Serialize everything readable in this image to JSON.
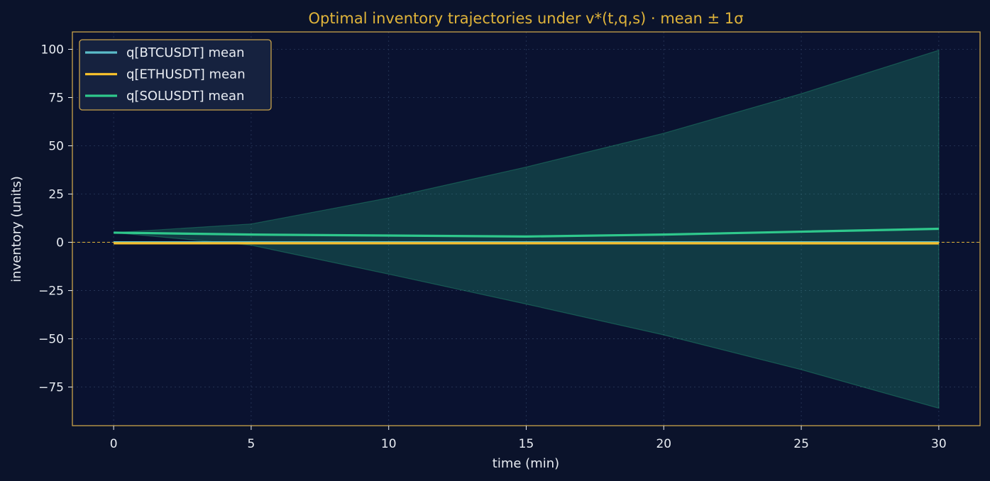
{
  "chart_data": {
    "type": "line",
    "title": "Optimal inventory trajectories under v*(t,q,s) · mean ± 1σ",
    "xlabel": "time (min)",
    "ylabel": "inventory (units)",
    "xlim": [
      -1.5,
      31.5
    ],
    "ylim": [
      -95,
      109
    ],
    "xticks": [
      0,
      5,
      10,
      15,
      20,
      25,
      30
    ],
    "yticks": [
      100,
      75,
      50,
      25,
      0,
      -25,
      -50,
      -75
    ],
    "ytick_labels": [
      "100",
      "75",
      "50",
      "25",
      "0",
      "−25",
      "−50",
      "−75"
    ],
    "grid": true,
    "legend_position": "top-left",
    "zero_line": {
      "y": 0,
      "color": "#e0b43a",
      "style": "dashed"
    },
    "x": [
      0,
      5,
      10,
      15,
      20,
      25,
      30
    ],
    "series": [
      {
        "name": "q[BTCUSDT] mean",
        "color": "#5bbcc9",
        "values": [
          0,
          0,
          0,
          0,
          0,
          0,
          0
        ],
        "band_lower": [
          0,
          0,
          0,
          0,
          0,
          0,
          0
        ],
        "band_upper": [
          0,
          0,
          0,
          0,
          0,
          0,
          0
        ]
      },
      {
        "name": "q[ETHUSDT] mean",
        "color": "#f5bf2c",
        "values": [
          -0.5,
          -0.5,
          -0.5,
          -0.5,
          -0.5,
          -0.5,
          -0.5
        ],
        "band_lower": [
          -0.5,
          -0.6,
          -0.7,
          -0.8,
          -0.9,
          -1.0,
          -1.1
        ],
        "band_upper": [
          -0.5,
          -0.4,
          -0.3,
          -0.2,
          -0.1,
          0.0,
          0.1
        ]
      },
      {
        "name": "q[SOLUSDT] mean",
        "color": "#2fc88c",
        "values": [
          5,
          4,
          3.5,
          3,
          4,
          5.5,
          7
        ],
        "band_lower": [
          5,
          -1.5,
          -16.5,
          -32,
          -48,
          -66,
          -86
        ],
        "band_upper": [
          5,
          9.5,
          23,
          39,
          56.5,
          77,
          99.5
        ]
      }
    ]
  }
}
